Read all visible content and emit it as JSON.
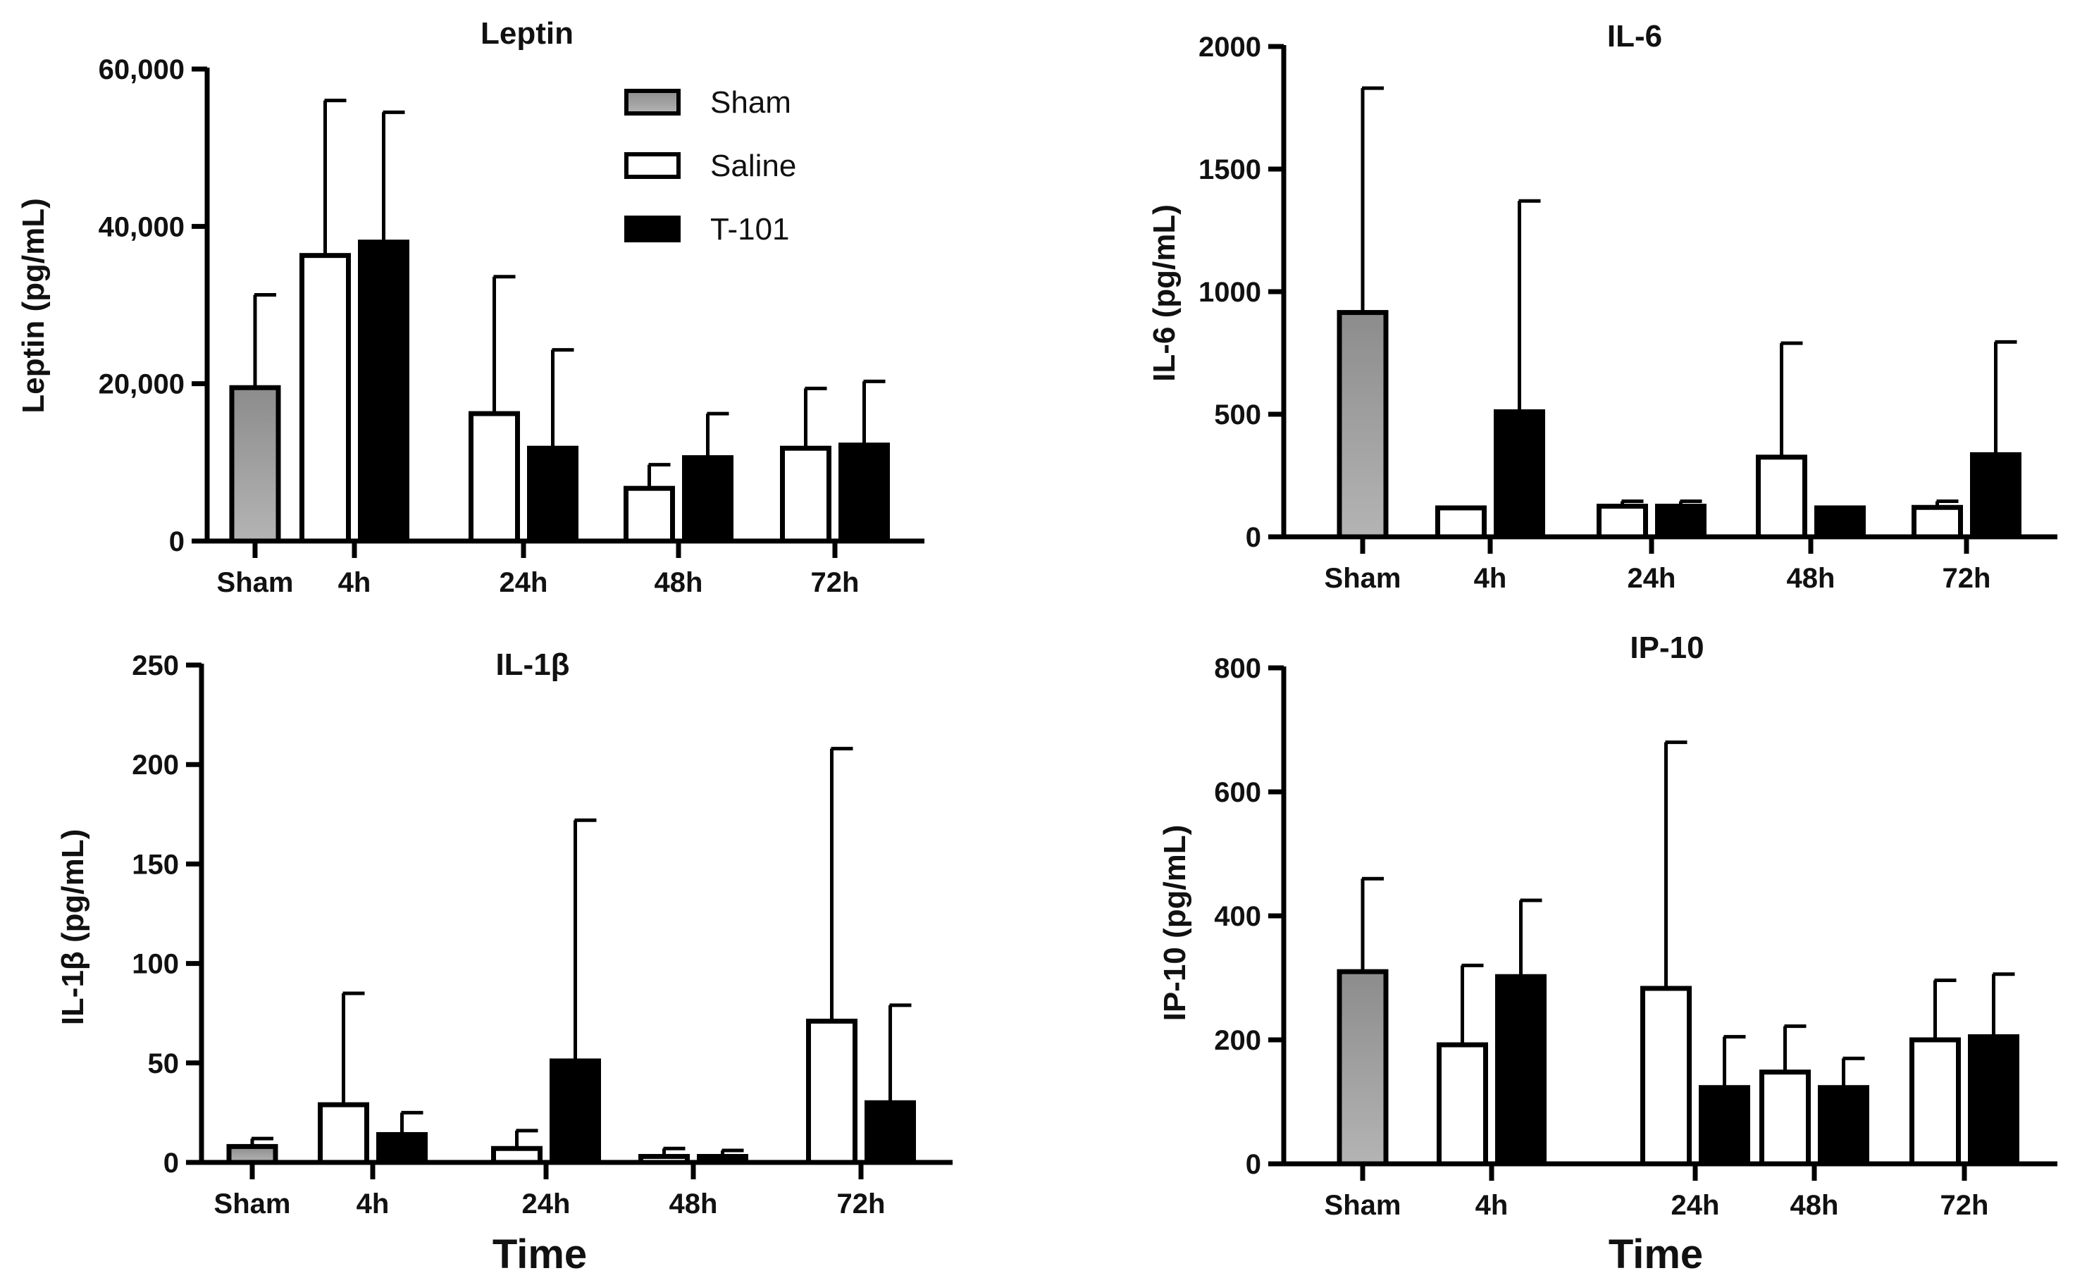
{
  "colors": {
    "sham": "#9a9a9a",
    "saline": "#ffffff",
    "t101": "#000000",
    "axis": "#000000"
  },
  "legend": [
    {
      "name": "Sham",
      "fill": "#9a9a9a"
    },
    {
      "name": "Saline",
      "fill": "#ffffff"
    },
    {
      "name": "T-101",
      "fill": "#000000"
    }
  ],
  "chart_data": [
    {
      "type": "bar",
      "title": "Leptin",
      "ylabel": "Leptin (pg/mL)",
      "xlabel": "",
      "ylim": [
        0,
        60000
      ],
      "yticks": [
        0,
        20000,
        40000,
        60000
      ],
      "ytick_labels": [
        "0",
        "20,000",
        "40,000",
        "60,000"
      ],
      "categories": [
        "Sham",
        "4h",
        "24h",
        "48h",
        "72h"
      ],
      "series": [
        {
          "name": "Sham",
          "values": [
            19500,
            null,
            null,
            null,
            null
          ],
          "errors": [
            31300,
            null,
            null,
            null,
            null
          ]
        },
        {
          "name": "Saline",
          "values": [
            null,
            36300,
            16200,
            6700,
            11800
          ],
          "errors": [
            null,
            56000,
            33600,
            9700,
            19400
          ]
        },
        {
          "name": "T-101",
          "values": [
            null,
            38000,
            11800,
            10600,
            12200
          ],
          "errors": [
            null,
            54500,
            24300,
            16200,
            20300
          ]
        }
      ]
    },
    {
      "type": "bar",
      "title": "IL-6",
      "ylabel": "IL-6 (pg/mL)",
      "xlabel": "",
      "ylim": [
        0,
        2000
      ],
      "yticks": [
        0,
        500,
        1000,
        1500,
        2000
      ],
      "ytick_labels": [
        "0",
        "500",
        "1000",
        "1500",
        "2000"
      ],
      "categories": [
        "Sham",
        "4h",
        "24h",
        "48h",
        "72h"
      ],
      "series": [
        {
          "name": "Sham",
          "values": [
            915,
            null,
            null,
            null,
            null
          ],
          "errors": [
            1830,
            null,
            null,
            null,
            null
          ]
        },
        {
          "name": "Saline",
          "values": [
            null,
            118,
            125,
            325,
            120
          ],
          "errors": [
            null,
            null,
            145,
            790,
            145
          ]
        },
        {
          "name": "T-101",
          "values": [
            null,
            510,
            125,
            118,
            335
          ],
          "errors": [
            null,
            1370,
            145,
            null,
            795
          ]
        }
      ]
    },
    {
      "type": "bar",
      "title": "IL-1β",
      "ylabel": "IL-1β (pg/mL)",
      "xlabel": "Time",
      "ylim": [
        0,
        250
      ],
      "yticks": [
        0,
        50,
        100,
        150,
        200,
        250
      ],
      "ytick_labels": [
        "0",
        "50",
        "100",
        "150",
        "200",
        "250"
      ],
      "categories": [
        "Sham",
        "4h",
        "24h",
        "48h",
        "72h"
      ],
      "series": [
        {
          "name": "Sham",
          "values": [
            8,
            null,
            null,
            null,
            null
          ],
          "errors": [
            12,
            null,
            null,
            null,
            null
          ]
        },
        {
          "name": "Saline",
          "values": [
            null,
            29,
            7,
            3,
            71
          ],
          "errors": [
            null,
            85,
            16,
            7,
            208
          ]
        },
        {
          "name": "T-101",
          "values": [
            null,
            14,
            51,
            3,
            30
          ],
          "errors": [
            null,
            25,
            172,
            6,
            79
          ]
        }
      ]
    },
    {
      "type": "bar",
      "title": "IP-10",
      "ylabel": "IP-10 (pg/mL)",
      "xlabel": "Time",
      "ylim": [
        0,
        800
      ],
      "yticks": [
        0,
        200,
        400,
        600,
        800
      ],
      "ytick_labels": [
        "0",
        "200",
        "400",
        "600",
        "800"
      ],
      "categories": [
        "Sham",
        "4h",
        "24h",
        "48h",
        "72h"
      ],
      "series": [
        {
          "name": "Sham",
          "values": [
            310,
            null,
            null,
            null,
            null
          ],
          "errors": [
            460,
            null,
            null,
            null,
            null
          ]
        },
        {
          "name": "Saline",
          "values": [
            null,
            192,
            283,
            148,
            200
          ],
          "errors": [
            null,
            320,
            680,
            222,
            296
          ]
        },
        {
          "name": "T-101",
          "values": [
            null,
            302,
            123,
            123,
            205
          ],
          "errors": [
            null,
            425,
            205,
            170,
            306
          ]
        }
      ]
    }
  ]
}
